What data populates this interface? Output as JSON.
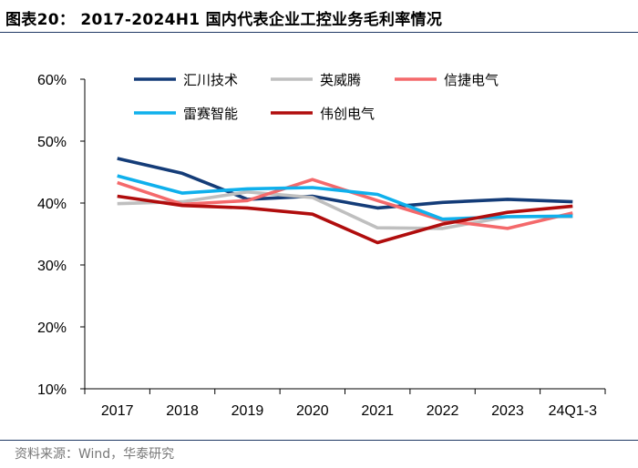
{
  "header": {
    "figure_title": "图表20： 2017-2024H1 国内代表企业工控业务毛利率情况"
  },
  "footer": {
    "source": "资料来源：Wind，华泰研究"
  },
  "chart_data": {
    "type": "line",
    "title": "2017-2024H1 国内代表企业工控业务毛利率情况",
    "categories": [
      "2017",
      "2018",
      "2019",
      "2020",
      "2021",
      "2022",
      "2023",
      "24Q1-3"
    ],
    "ylim": [
      10,
      60
    ],
    "yticks": [
      10,
      20,
      30,
      40,
      50,
      60
    ],
    "ytick_labels": [
      "10%",
      "20%",
      "30%",
      "40%",
      "50%",
      "60%"
    ],
    "ylabel": "",
    "xlabel": "",
    "grid": false,
    "legend_position": "top",
    "series": [
      {
        "name": "汇川技术",
        "color": "#143c78",
        "values": [
          47.2,
          44.8,
          40.6,
          41.1,
          39.2,
          40.1,
          40.6,
          40.2
        ]
      },
      {
        "name": "英威腾",
        "color": "#bfbfbf",
        "values": [
          39.9,
          40.2,
          41.8,
          40.9,
          36.0,
          35.9,
          37.8,
          37.8
        ]
      },
      {
        "name": "信捷电气",
        "color": "#f4696b",
        "values": [
          43.3,
          39.8,
          40.4,
          43.8,
          40.4,
          37.2,
          35.9,
          38.4
        ]
      },
      {
        "name": "雷赛智能",
        "color": "#0fb0ec",
        "values": [
          44.4,
          41.6,
          42.3,
          42.5,
          41.4,
          37.4,
          37.8,
          37.9
        ]
      },
      {
        "name": "伟创电气",
        "color": "#b00d0d",
        "values": [
          41.1,
          39.6,
          39.2,
          38.2,
          33.6,
          36.6,
          38.5,
          39.5
        ]
      }
    ]
  }
}
